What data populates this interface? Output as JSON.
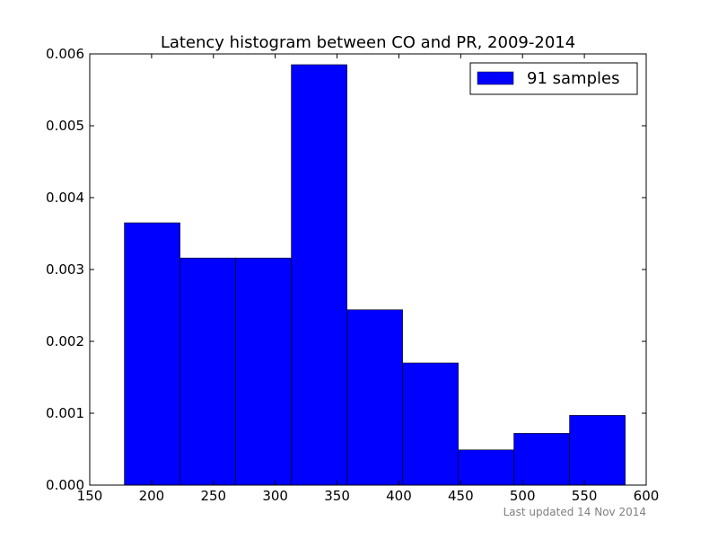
{
  "chart_data": {
    "type": "bar",
    "title": "Latency histogram between CO and PR, 2009-2014",
    "xlabel": "",
    "ylabel": "",
    "xlim": [
      150,
      600
    ],
    "ylim": [
      0,
      0.006
    ],
    "x_ticks": [
      150,
      200,
      250,
      300,
      350,
      400,
      450,
      500,
      550,
      600
    ],
    "y_ticks": [
      0,
      0.001,
      0.002,
      0.003,
      0.004,
      0.005,
      0.006
    ],
    "x_tick_labels": [
      "150",
      "200",
      "250",
      "300",
      "350",
      "400",
      "450",
      "500",
      "550",
      "600"
    ],
    "y_tick_labels": [
      "0.000",
      "0.001",
      "0.002",
      "0.003",
      "0.004",
      "0.005",
      "0.006"
    ],
    "bin_edges": [
      178,
      223,
      268,
      313,
      358,
      403,
      448,
      493,
      538,
      583
    ],
    "series": [
      {
        "name": "91 samples",
        "color": "#0000ff",
        "values": [
          0.00365,
          0.00316,
          0.00316,
          0.00585,
          0.00244,
          0.0017,
          0.00049,
          0.00072,
          0.00097
        ]
      }
    ],
    "grid": false,
    "legend_position": "top-right"
  },
  "footnote": "Last updated 14 Nov 2014"
}
